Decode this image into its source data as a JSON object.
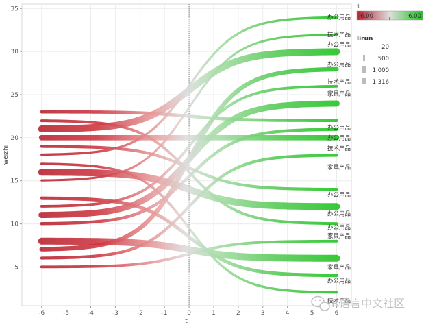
{
  "chart_data": {
    "type": "line",
    "style": "sigmoid flow lines from x=-6 to x=6, colored by t (red to green), width by lirun",
    "xlabel": "t",
    "ylabel": "weizhi",
    "xlim": [
      -6.8,
      6.6
    ],
    "ylim": [
      0.5,
      35.5
    ],
    "x_ticks": [
      "-6",
      "-5",
      "-4",
      "-3",
      "-2",
      "-1",
      "0",
      "1",
      "2",
      "3",
      "4",
      "5",
      "6"
    ],
    "y_ticks": [
      "5",
      "10",
      "15",
      "20",
      "25",
      "30",
      "35"
    ],
    "grid": true,
    "reference_line_x": 0,
    "series": [
      {
        "start": 23,
        "end": 22,
        "lirun": 200
      },
      {
        "start": 21,
        "end": 30,
        "lirun": 1316
      },
      {
        "start": 20,
        "end": 20,
        "lirun": 700
      },
      {
        "start": 19,
        "end": 14,
        "lirun": 150
      },
      {
        "start": 18,
        "end": 34,
        "lirun": 80
      },
      {
        "start": 16,
        "end": 12,
        "lirun": 1316
      },
      {
        "start": 15,
        "end": 32,
        "lirun": 60
      },
      {
        "start": 13,
        "end": 4,
        "lirun": 250
      },
      {
        "start": 12,
        "end": 26,
        "lirun": 120
      },
      {
        "start": 11,
        "end": 24,
        "lirun": 1000
      },
      {
        "start": 10,
        "end": 21,
        "lirun": 180
      },
      {
        "start": 8,
        "end": 6,
        "lirun": 1316
      },
      {
        "start": 7,
        "end": 28,
        "lirun": 450
      },
      {
        "start": 6,
        "end": 18,
        "lirun": 160
      },
      {
        "start": 5,
        "end": 8,
        "lirun": 120
      },
      {
        "start": 22,
        "end": 10,
        "lirun": 130
      },
      {
        "start": 17,
        "end": 2,
        "lirun": 90
      }
    ],
    "end_labels": [
      {
        "y": 34,
        "text": "办公用品"
      },
      {
        "y": 32,
        "text": "技术产品"
      },
      {
        "y": 30.8,
        "text": "办公用品"
      },
      {
        "y": 28.5,
        "text": "办公用品"
      },
      {
        "y": 26.5,
        "text": "技术产品"
      },
      {
        "y": 25.1,
        "text": "家具产品"
      },
      {
        "y": 21.2,
        "text": "办公用品"
      },
      {
        "y": 20,
        "text": "办公用品"
      },
      {
        "y": 18.8,
        "text": "技术产品"
      },
      {
        "y": 16.6,
        "text": "家具产品"
      },
      {
        "y": 13.4,
        "text": "办公用品"
      },
      {
        "y": 11.2,
        "text": "办公用品"
      },
      {
        "y": 9.6,
        "text": "办公用品"
      },
      {
        "y": 8.6,
        "text": "家具产品"
      },
      {
        "y": 5,
        "text": "家具产品"
      },
      {
        "y": 3.4,
        "text": "办公用品"
      },
      {
        "y": 1.1,
        "text": "技术产品"
      }
    ],
    "legend": {
      "placement": "top-right",
      "color": {
        "title": "t",
        "min_label": "-6.00",
        "max_label": "6.00",
        "min_color": "#b5202e",
        "max_color": "#1fc21f"
      },
      "size": {
        "title": "lirun",
        "items": [
          "20",
          "500",
          "1,000",
          "1,316"
        ]
      }
    }
  },
  "watermark": {
    "text": "R语言中文社区",
    "icon_name": "wechat-icon"
  }
}
